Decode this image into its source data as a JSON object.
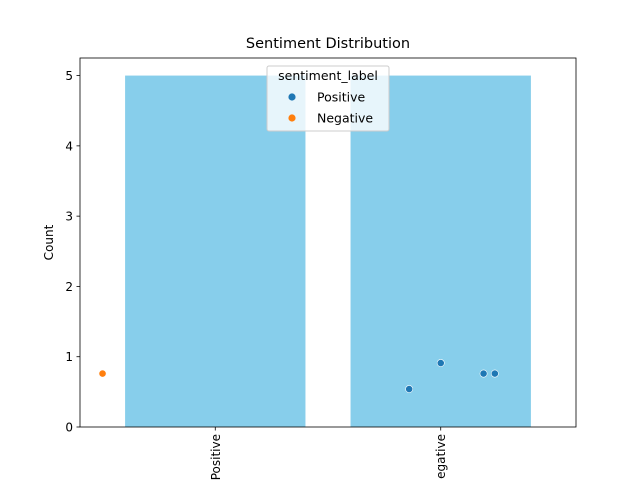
{
  "chart_data": {
    "type": "bar",
    "title": "Sentiment Distribution",
    "xlabel": "",
    "ylabel": "Count",
    "categories": [
      "Positive",
      "Negative"
    ],
    "values": [
      5,
      5
    ],
    "bar_color": "#87CEEB",
    "ylim": [
      0,
      5.25
    ],
    "yticks": [
      0,
      1,
      2,
      3,
      4,
      5
    ],
    "grid": false,
    "x_tick_rotation": 90,
    "scatter": {
      "legend_title": "sentiment_label",
      "legend_position": "top-center",
      "series": [
        {
          "name": "Positive",
          "color": "#1f77b4",
          "points": [
            {
              "x": 0.86,
              "y": 0.54
            },
            {
              "x": 1.0,
              "y": 0.91
            },
            {
              "x": 1.19,
              "y": 0.76
            },
            {
              "x": 1.24,
              "y": 0.76
            }
          ]
        },
        {
          "name": "Negative",
          "color": "#ff7f0e",
          "points": [
            {
              "x": -0.5,
              "y": 0.76
            }
          ]
        }
      ]
    }
  }
}
